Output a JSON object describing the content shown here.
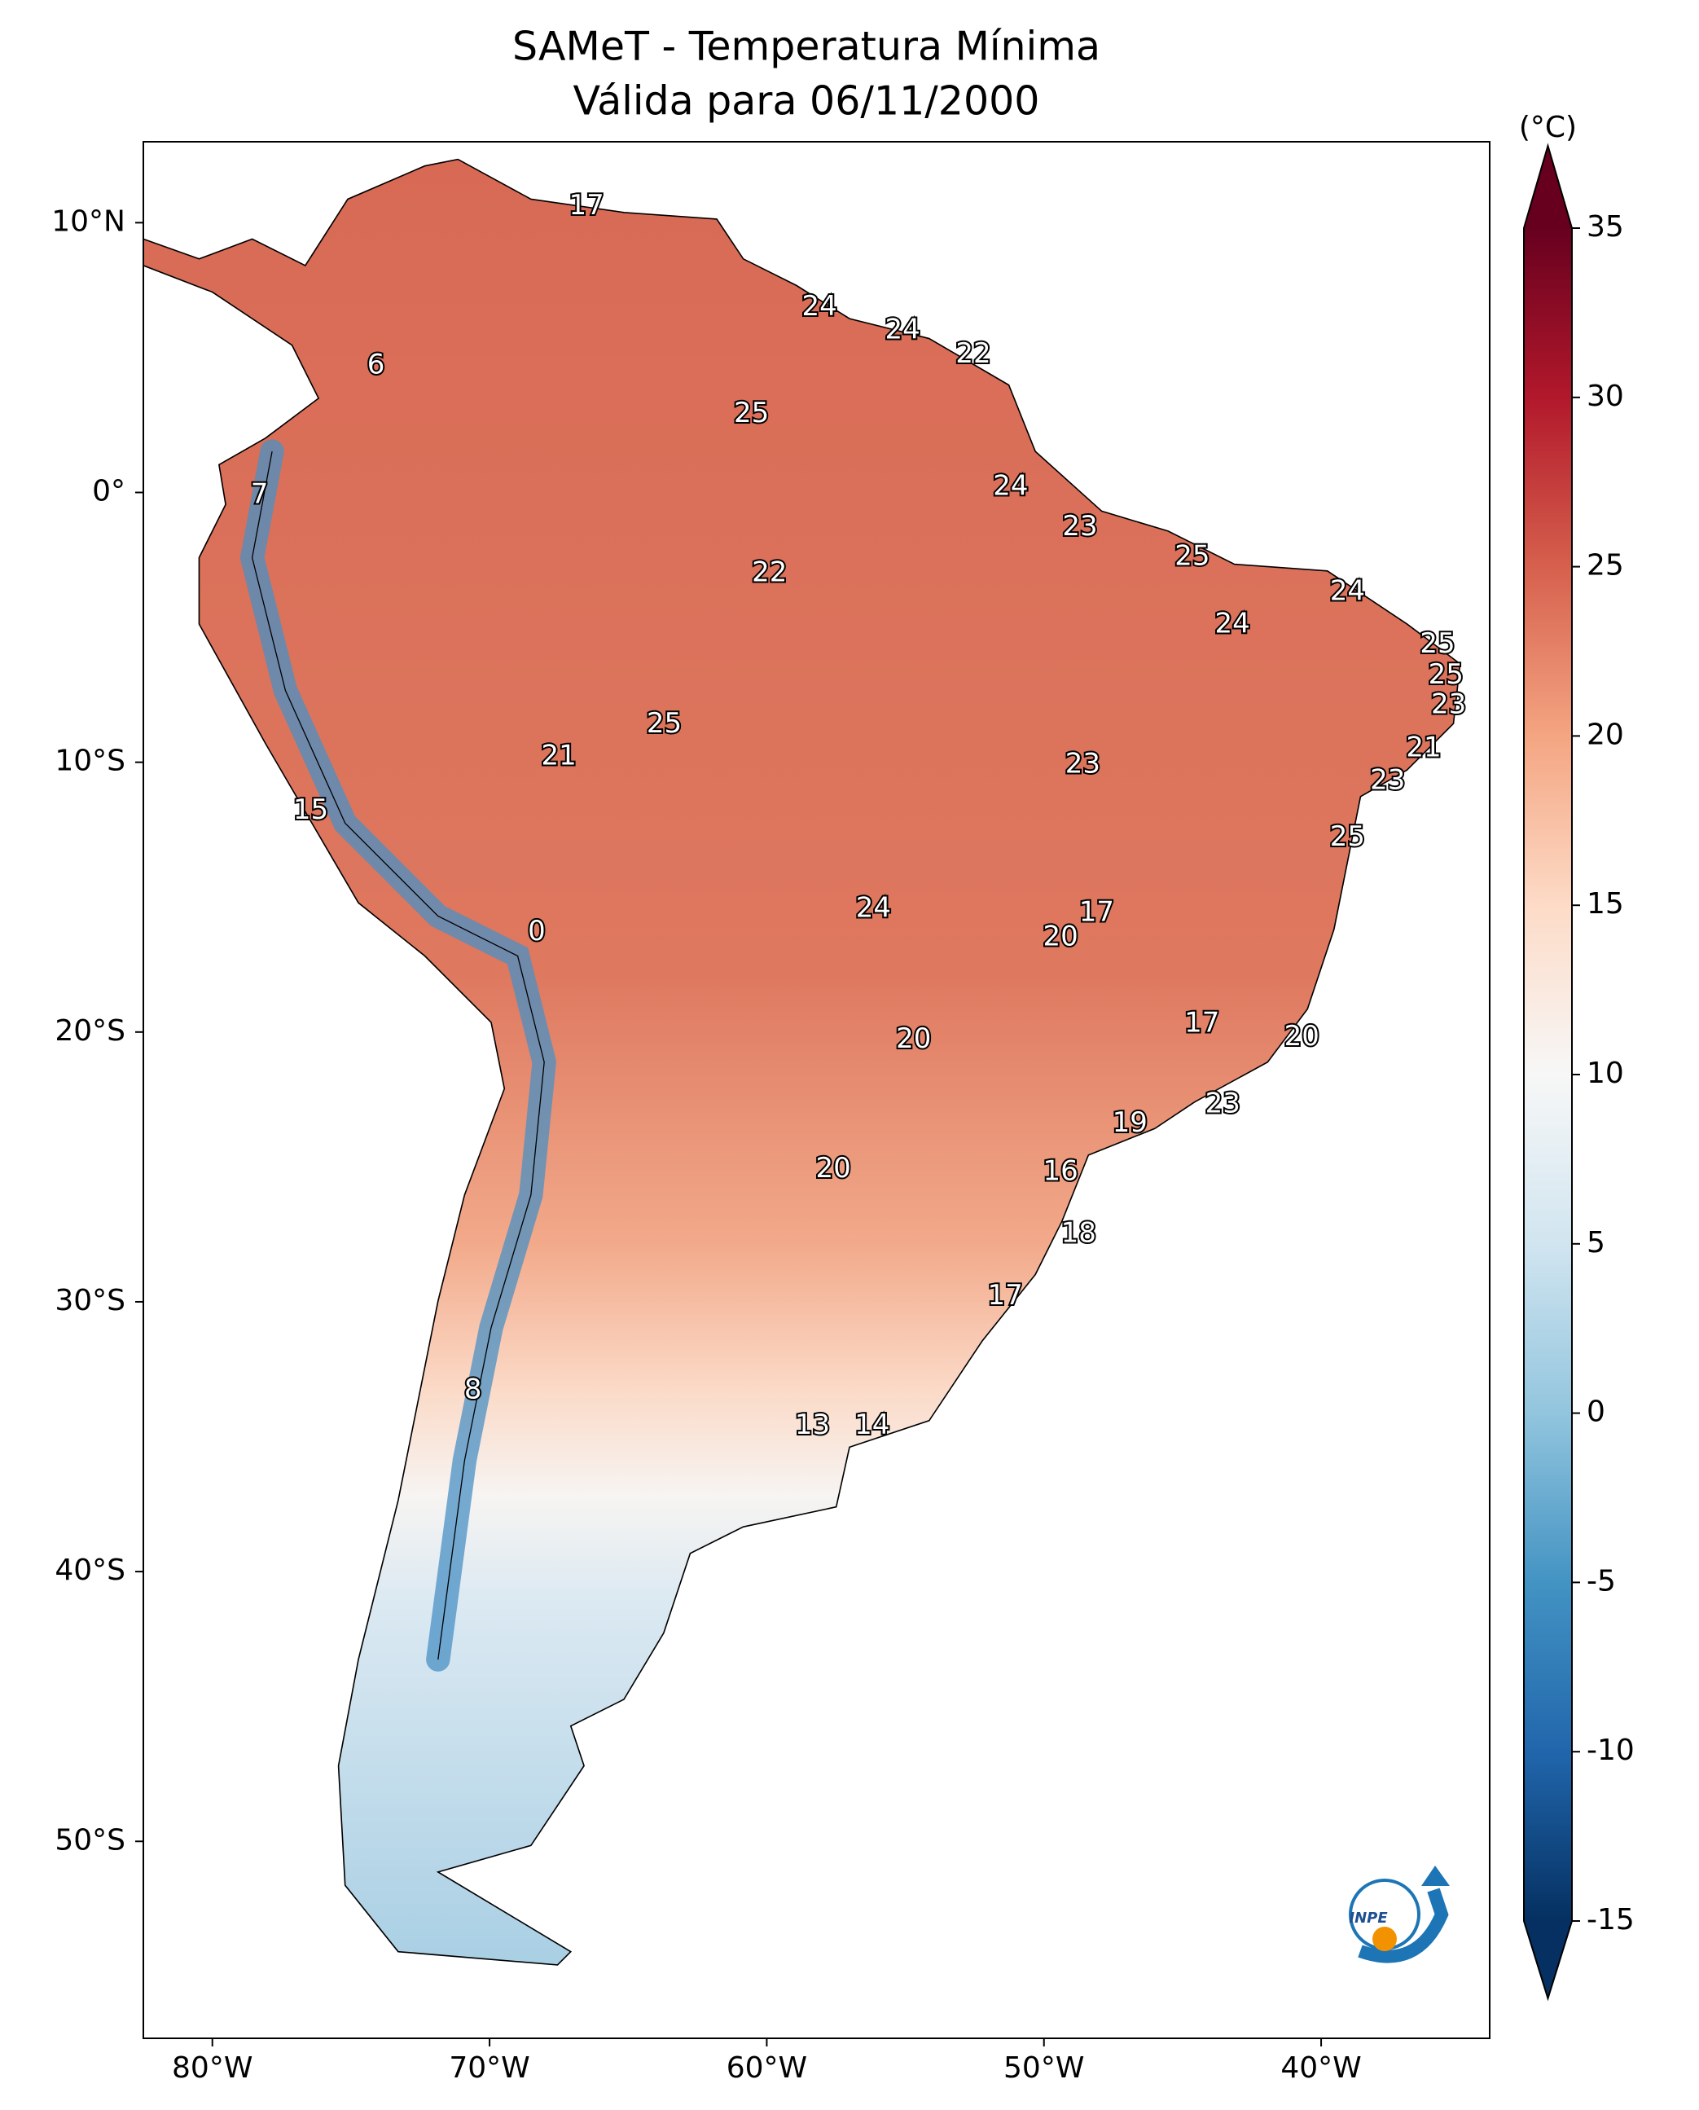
{
  "chart_data": {
    "type": "map",
    "title": "SAMeT - Temperatura Mínima",
    "subtitle": "Válida para 06/11/2000",
    "xlim": [
      -82.49,
      -33.92
    ],
    "ylim": [
      -57.3,
      13.0
    ],
    "xticks": [
      {
        "value": -80,
        "label": "80°W"
      },
      {
        "value": -70,
        "label": "70°W"
      },
      {
        "value": -60,
        "label": "60°W"
      },
      {
        "value": -50,
        "label": "50°W"
      },
      {
        "value": -40,
        "label": "40°W"
      }
    ],
    "yticks": [
      {
        "value": 10,
        "label": "10°N"
      },
      {
        "value": 0,
        "label": "0°"
      },
      {
        "value": -10,
        "label": "10°S"
      },
      {
        "value": -20,
        "label": "20°S"
      },
      {
        "value": -30,
        "label": "30°S"
      },
      {
        "value": -40,
        "label": "40°S"
      },
      {
        "value": -50,
        "label": "50°S"
      }
    ],
    "lon": [
      -66.5,
      -58.1,
      -55.1,
      -52.55,
      -74.1,
      -60.55,
      -78.3,
      -51.2,
      -48.7,
      -44.65,
      -59.9,
      -39.05,
      -43.2,
      -35.8,
      -35.5,
      -35.4,
      -63.7,
      -36.3,
      -67.5,
      -48.6,
      -37.6,
      -76.45,
      -39.05,
      -56.15,
      -48.1,
      -68.3,
      -49.4,
      -44.3,
      -40.7,
      -54.7,
      -43.55,
      -46.9,
      -57.6,
      -49.4,
      -48.75,
      -51.4,
      -70.6,
      -58.35,
      -56.2
    ],
    "lat": [
      10.6,
      6.85,
      6.0,
      5.1,
      4.7,
      2.9,
      -0.1,
      0.2,
      -1.3,
      -2.4,
      -3.0,
      -3.7,
      -4.9,
      -5.65,
      -6.8,
      -7.9,
      -8.6,
      -9.5,
      -9.8,
      -10.1,
      -10.7,
      -11.8,
      -12.8,
      -15.45,
      -15.6,
      -16.3,
      -16.5,
      -19.7,
      -20.2,
      -20.3,
      -22.7,
      -23.4,
      -25.1,
      -25.2,
      -27.5,
      -29.8,
      -33.3,
      -34.6,
      -34.6
    ],
    "values": [
      17,
      24,
      24,
      22,
      6,
      25,
      7,
      24,
      23,
      25,
      22,
      24,
      24,
      25,
      25,
      23,
      25,
      21,
      21,
      23,
      23,
      15,
      25,
      24,
      17,
      0,
      20,
      17,
      20,
      20,
      23,
      19,
      20,
      16,
      18,
      17,
      8,
      13,
      14
    ],
    "colorbar": {
      "label": "(°C)",
      "lim": [
        -15,
        35
      ],
      "ticks": [
        -15,
        -10,
        -5,
        0,
        5,
        10,
        15,
        20,
        25,
        30,
        35
      ],
      "colors": [
        "#053061",
        "#2166ac",
        "#4393c3",
        "#92c5de",
        "#d1e5f0",
        "#f7f7f7",
        "#fddbc7",
        "#f4a582",
        "#d6604d",
        "#b2182b",
        "#67001f"
      ]
    },
    "logo_text": "INPE"
  }
}
